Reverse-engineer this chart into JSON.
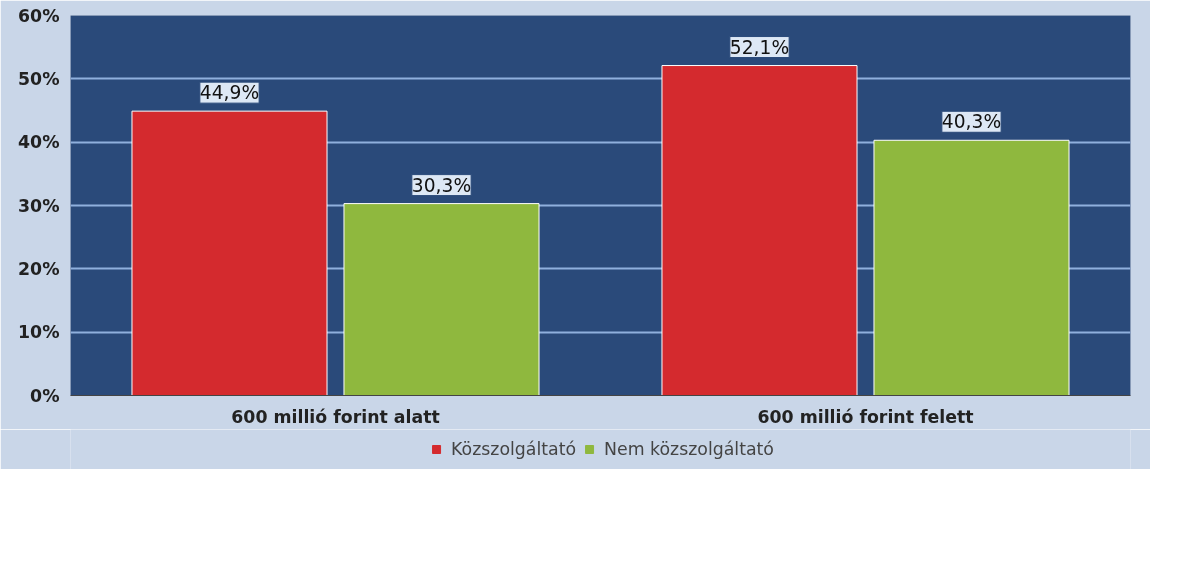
{
  "chart_data": {
    "type": "bar",
    "categories": [
      "600 millió forint alatt",
      "600 millió forint felett"
    ],
    "series": [
      {
        "name": "Közszolgáltató",
        "color": "#d42a2e",
        "values": [
          44.9,
          52.1
        ],
        "value_labels": [
          "44,9%",
          "52,1%"
        ]
      },
      {
        "name": "Nem közszolgáltató",
        "color": "#8fb83e",
        "values": [
          30.3,
          40.3
        ],
        "value_labels": [
          "30,3%",
          "40,3%"
        ]
      }
    ],
    "ylim": [
      0,
      60
    ],
    "yticks": [
      {
        "value": 0,
        "label": "0%"
      },
      {
        "value": 10,
        "label": "10%"
      },
      {
        "value": 20,
        "label": "20%"
      },
      {
        "value": 30,
        "label": "30%"
      },
      {
        "value": 40,
        "label": "40%"
      },
      {
        "value": 50,
        "label": "50%"
      },
      {
        "value": 60,
        "label": "60%"
      }
    ],
    "grid": "y",
    "legend": "bottom"
  }
}
